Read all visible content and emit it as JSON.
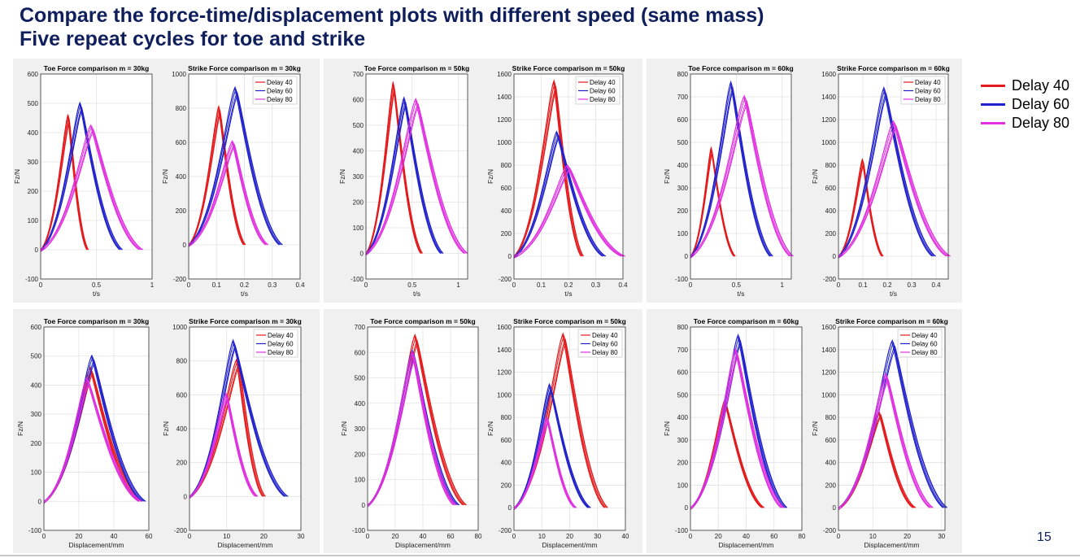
{
  "slide": {
    "title_line1": "Compare the force-time/displacement plots with different speed (same mass)",
    "title_line2": "Five repeat cycles for toe and strike",
    "page_number": "15"
  },
  "legend": [
    {
      "label": "Delay 40",
      "color": "#e41a1c"
    },
    {
      "label": "Delay 60",
      "color": "#2222cc"
    },
    {
      "label": "Delay 80",
      "color": "#e030e0"
    }
  ],
  "chart_data": [
    {
      "type": "line",
      "title": "Toe Force comparison  m = 30kg",
      "xlabel": "t/s",
      "ylabel": "Fz/N",
      "xlim": [
        0,
        1
      ],
      "ylim": [
        -100,
        600
      ],
      "xticks": [
        0,
        0.5,
        1
      ],
      "yticks": [
        -100,
        0,
        100,
        200,
        300,
        400,
        500,
        600
      ],
      "legend": false,
      "series": [
        {
          "name": "Delay 40",
          "start": 0,
          "peak_x": 0.25,
          "peak_y": 455,
          "end": 0.42
        },
        {
          "name": "Delay 60",
          "start": 0,
          "peak_x": 0.36,
          "peak_y": 495,
          "end": 0.72
        },
        {
          "name": "Delay 80",
          "start": 0,
          "peak_x": 0.46,
          "peak_y": 420,
          "end": 0.9
        }
      ]
    },
    {
      "type": "line",
      "title": "Strike Force comparison  m = 30kg",
      "xlabel": "t/s",
      "ylabel": "Fz/N",
      "xlim": [
        0,
        0.4
      ],
      "ylim": [
        -200,
        1000
      ],
      "xticks": [
        0,
        0.1,
        0.2,
        0.3,
        0.4
      ],
      "yticks": [
        -200,
        0,
        200,
        400,
        600,
        800,
        1000
      ],
      "legend": true,
      "series": [
        {
          "name": "Delay 40",
          "start": 0,
          "peak_x": 0.11,
          "peak_y": 800,
          "end": 0.2
        },
        {
          "name": "Delay 60",
          "start": 0,
          "peak_x": 0.17,
          "peak_y": 910,
          "end": 0.33
        },
        {
          "name": "Delay 80",
          "start": 0,
          "peak_x": 0.16,
          "peak_y": 600,
          "end": 0.28
        }
      ]
    },
    {
      "type": "line",
      "title": "Toe Force comparison  m = 50kg",
      "xlabel": "t/s",
      "ylabel": "Fz/N",
      "xlim": [
        0,
        1.1
      ],
      "ylim": [
        -100,
        700
      ],
      "xticks": [
        0,
        0.5,
        1
      ],
      "yticks": [
        -100,
        0,
        100,
        200,
        300,
        400,
        500,
        600,
        700
      ],
      "legend": false,
      "series": [
        {
          "name": "Delay 40",
          "start": 0,
          "peak_x": 0.3,
          "peak_y": 660,
          "end": 0.6
        },
        {
          "name": "Delay 60",
          "start": 0,
          "peak_x": 0.42,
          "peak_y": 600,
          "end": 0.82
        },
        {
          "name": "Delay 80",
          "start": 0,
          "peak_x": 0.55,
          "peak_y": 595,
          "end": 1.08
        }
      ]
    },
    {
      "type": "line",
      "title": "Strike Force comparison  m = 50kg",
      "xlabel": "t/s",
      "ylabel": "Fz/N",
      "xlim": [
        0,
        0.4
      ],
      "ylim": [
        -200,
        1600
      ],
      "xticks": [
        0,
        0.1,
        0.2,
        0.3,
        0.4
      ],
      "yticks": [
        -200,
        0,
        200,
        400,
        600,
        800,
        1000,
        1200,
        1400,
        1600
      ],
      "legend": true,
      "series": [
        {
          "name": "Delay 40",
          "start": 0,
          "peak_x": 0.15,
          "peak_y": 1520,
          "end": 0.25
        },
        {
          "name": "Delay 60",
          "start": 0,
          "peak_x": 0.16,
          "peak_y": 1080,
          "end": 0.33
        },
        {
          "name": "Delay 80",
          "start": 0,
          "peak_x": 0.2,
          "peak_y": 790,
          "end": 0.4
        }
      ]
    },
    {
      "type": "line",
      "title": "Toe Force comparison  m = 60kg",
      "xlabel": "t/s",
      "ylabel": "Fz/N",
      "xlim": [
        0,
        1.1
      ],
      "ylim": [
        -100,
        800
      ],
      "xticks": [
        0,
        0.5,
        1
      ],
      "yticks": [
        -100,
        0,
        100,
        200,
        300,
        400,
        500,
        600,
        700,
        800
      ],
      "legend": false,
      "series": [
        {
          "name": "Delay 40",
          "start": 0,
          "peak_x": 0.23,
          "peak_y": 470,
          "end": 0.48
        },
        {
          "name": "Delay 60",
          "start": 0,
          "peak_x": 0.45,
          "peak_y": 755,
          "end": 0.88
        },
        {
          "name": "Delay 80",
          "start": 0,
          "peak_x": 0.6,
          "peak_y": 695,
          "end": 1.1
        }
      ]
    },
    {
      "type": "line",
      "title": "Strike Force comparison  m = 60kg",
      "xlabel": "t/s",
      "ylabel": "Fz/N",
      "xlim": [
        0,
        0.45
      ],
      "ylim": [
        -200,
        1600
      ],
      "xticks": [
        0,
        0.1,
        0.2,
        0.3,
        0.4
      ],
      "yticks": [
        -200,
        0,
        200,
        400,
        600,
        800,
        1000,
        1200,
        1400,
        1600
      ],
      "legend": true,
      "series": [
        {
          "name": "Delay 40",
          "start": 0,
          "peak_x": 0.1,
          "peak_y": 840,
          "end": 0.18
        },
        {
          "name": "Delay 60",
          "start": 0,
          "peak_x": 0.19,
          "peak_y": 1460,
          "end": 0.39
        },
        {
          "name": "Delay 80",
          "start": 0,
          "peak_x": 0.23,
          "peak_y": 1170,
          "end": 0.45
        }
      ]
    },
    {
      "type": "line",
      "title": "Toe Force comparison m = 30kg",
      "xlabel": "Displacement/mm",
      "ylabel": "Fz/N",
      "xlim": [
        0,
        60
      ],
      "ylim": [
        -100,
        600
      ],
      "xticks": [
        0,
        20,
        40,
        60
      ],
      "yticks": [
        -100,
        0,
        100,
        200,
        300,
        400,
        500,
        600
      ],
      "legend": false,
      "series": [
        {
          "name": "Delay 40",
          "start": 0,
          "peak_x": 27,
          "peak_y": 455,
          "end": 55
        },
        {
          "name": "Delay 60",
          "start": 0,
          "peak_x": 28,
          "peak_y": 495,
          "end": 57
        },
        {
          "name": "Delay 80",
          "start": 0,
          "peak_x": 25,
          "peak_y": 420,
          "end": 55
        }
      ]
    },
    {
      "type": "line",
      "title": "Strike Force comparison m = 30kg",
      "xlabel": "Displacement/mm",
      "ylabel": "Fz/N",
      "xlim": [
        0,
        30
      ],
      "ylim": [
        -200,
        1000
      ],
      "xticks": [
        0,
        10,
        20,
        30
      ],
      "yticks": [
        -200,
        0,
        200,
        400,
        600,
        800,
        1000
      ],
      "legend": true,
      "series": [
        {
          "name": "Delay 40",
          "start": 0,
          "peak_x": 13,
          "peak_y": 800,
          "end": 20
        },
        {
          "name": "Delay 60",
          "start": 0,
          "peak_x": 12,
          "peak_y": 910,
          "end": 26
        },
        {
          "name": "Delay 80",
          "start": 0,
          "peak_x": 10,
          "peak_y": 600,
          "end": 18
        }
      ]
    },
    {
      "type": "line",
      "title": "Toe Force comparison m = 50kg",
      "xlabel": "Displacement/mm",
      "ylabel": "Fz/N",
      "xlim": [
        0,
        80
      ],
      "ylim": [
        -100,
        700
      ],
      "xticks": [
        0,
        20,
        40,
        60,
        80
      ],
      "yticks": [
        -100,
        0,
        100,
        200,
        300,
        400,
        500,
        600,
        700
      ],
      "legend": false,
      "series": [
        {
          "name": "Delay 40",
          "start": 0,
          "peak_x": 35,
          "peak_y": 660,
          "end": 70
        },
        {
          "name": "Delay 60",
          "start": 0,
          "peak_x": 33,
          "peak_y": 600,
          "end": 65
        },
        {
          "name": "Delay 80",
          "start": 0,
          "peak_x": 33,
          "peak_y": 595,
          "end": 63
        }
      ]
    },
    {
      "type": "line",
      "title": "Strike Force comparison m = 50kg",
      "xlabel": "Displacement/mm",
      "ylabel": "Fz/N",
      "xlim": [
        0,
        40
      ],
      "ylim": [
        -200,
        1600
      ],
      "xticks": [
        0,
        10,
        20,
        30,
        40
      ],
      "yticks": [
        -200,
        0,
        200,
        400,
        600,
        800,
        1000,
        1200,
        1400,
        1600
      ],
      "legend": true,
      "series": [
        {
          "name": "Delay 40",
          "start": 0,
          "peak_x": 18,
          "peak_y": 1520,
          "end": 33
        },
        {
          "name": "Delay 60",
          "start": 0,
          "peak_x": 13,
          "peak_y": 1080,
          "end": 27
        },
        {
          "name": "Delay 80",
          "start": 0,
          "peak_x": 12,
          "peak_y": 790,
          "end": 22
        }
      ]
    },
    {
      "type": "line",
      "title": "Toe Force comparison m = 60kg",
      "xlabel": "Displacement/mm",
      "ylabel": "Fz/N",
      "xlim": [
        0,
        80
      ],
      "ylim": [
        -100,
        800
      ],
      "xticks": [
        0,
        20,
        40,
        60,
        80
      ],
      "yticks": [
        -100,
        0,
        100,
        200,
        300,
        400,
        500,
        600,
        700,
        800
      ],
      "legend": false,
      "series": [
        {
          "name": "Delay 40",
          "start": 0,
          "peak_x": 25,
          "peak_y": 470,
          "end": 52
        },
        {
          "name": "Delay 60",
          "start": 0,
          "peak_x": 35,
          "peak_y": 755,
          "end": 68
        },
        {
          "name": "Delay 80",
          "start": 0,
          "peak_x": 33,
          "peak_y": 695,
          "end": 66
        }
      ]
    },
    {
      "type": "line",
      "title": "Strike Force comparison m = 60kg",
      "xlabel": "Displacement/mm",
      "ylabel": "Fz/N",
      "xlim": [
        0,
        31
      ],
      "ylim": [
        -200,
        1600
      ],
      "xticks": [
        0,
        10,
        20,
        30
      ],
      "yticks": [
        -200,
        0,
        200,
        400,
        600,
        800,
        1000,
        1200,
        1400,
        1600
      ],
      "legend": true,
      "series": [
        {
          "name": "Delay 40",
          "start": 0,
          "peak_x": 12,
          "peak_y": 840,
          "end": 22
        },
        {
          "name": "Delay 60",
          "start": 0,
          "peak_x": 16,
          "peak_y": 1460,
          "end": 31
        },
        {
          "name": "Delay 80",
          "start": 0,
          "peak_x": 14,
          "peak_y": 1170,
          "end": 27
        }
      ]
    }
  ]
}
